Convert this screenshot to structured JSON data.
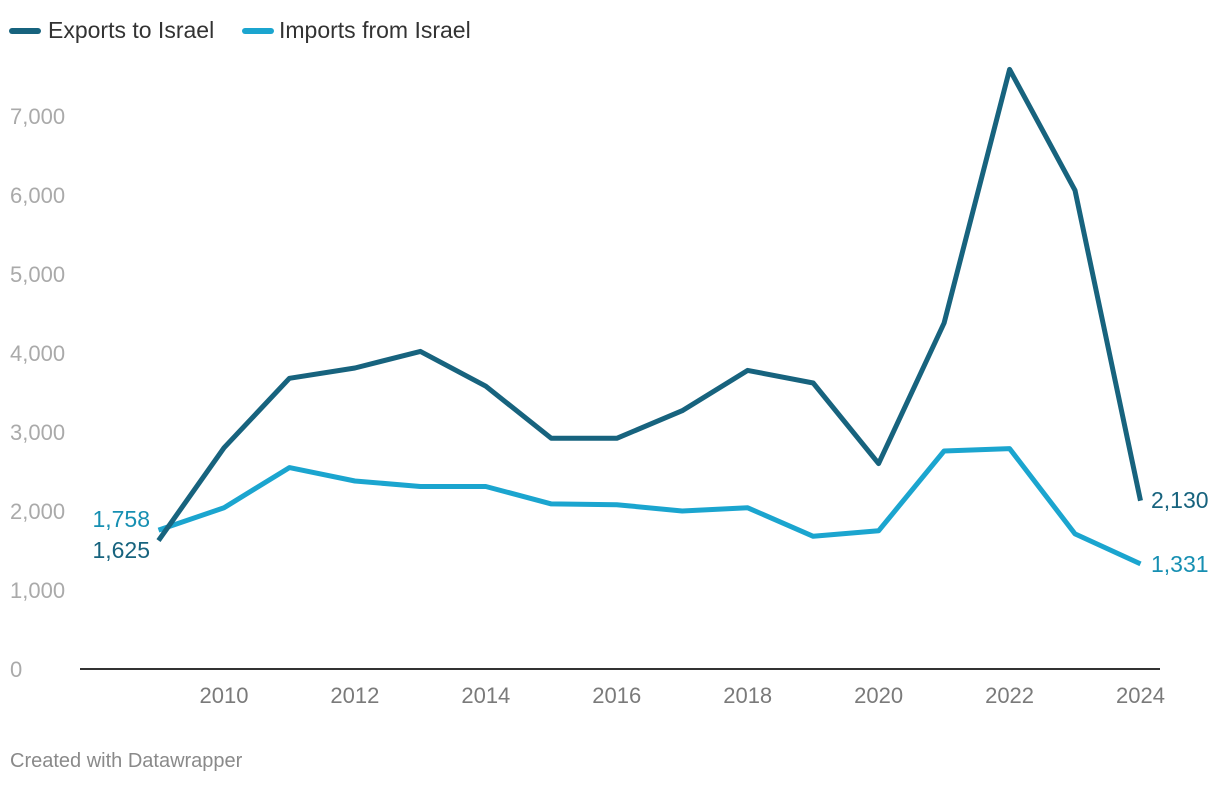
{
  "chart_data": {
    "type": "line",
    "title": "",
    "xlabel": "",
    "ylabel": "",
    "x": [
      2009,
      2010,
      2011,
      2012,
      2013,
      2014,
      2015,
      2016,
      2017,
      2018,
      2019,
      2020,
      2021,
      2022,
      2023,
      2024
    ],
    "xticks": [
      "2010",
      "2012",
      "2014",
      "2016",
      "2018",
      "2020",
      "2022",
      "2024"
    ],
    "yticks": [
      "0",
      "1,000",
      "2,000",
      "3,000",
      "4,000",
      "5,000",
      "6,000",
      "7,000"
    ],
    "xlim": [
      2008,
      2024.3
    ],
    "ylim": [
      0,
      7700
    ],
    "legend_position": "top-left",
    "series": [
      {
        "name": "Exports to Israel",
        "color": "#17637e",
        "values": [
          1625,
          2800,
          3680,
          3810,
          4020,
          3580,
          2920,
          2920,
          3270,
          3780,
          3620,
          2600,
          4380,
          7590,
          6060,
          2130
        ],
        "start_label": "1,625",
        "end_label": "2,130"
      },
      {
        "name": "Imports from Israel",
        "color": "#1ba5cf",
        "values": [
          1758,
          2040,
          2550,
          2380,
          2310,
          2310,
          2090,
          2080,
          2000,
          2040,
          1680,
          1750,
          2760,
          2790,
          1710,
          1331
        ],
        "start_label": "1,758",
        "end_label": "1,331"
      }
    ],
    "label_colors": {
      "Exports to Israel": "#17637e",
      "Imports from Israel": "#168fb2"
    }
  },
  "footer": {
    "credit": "Created with Datawrapper"
  }
}
